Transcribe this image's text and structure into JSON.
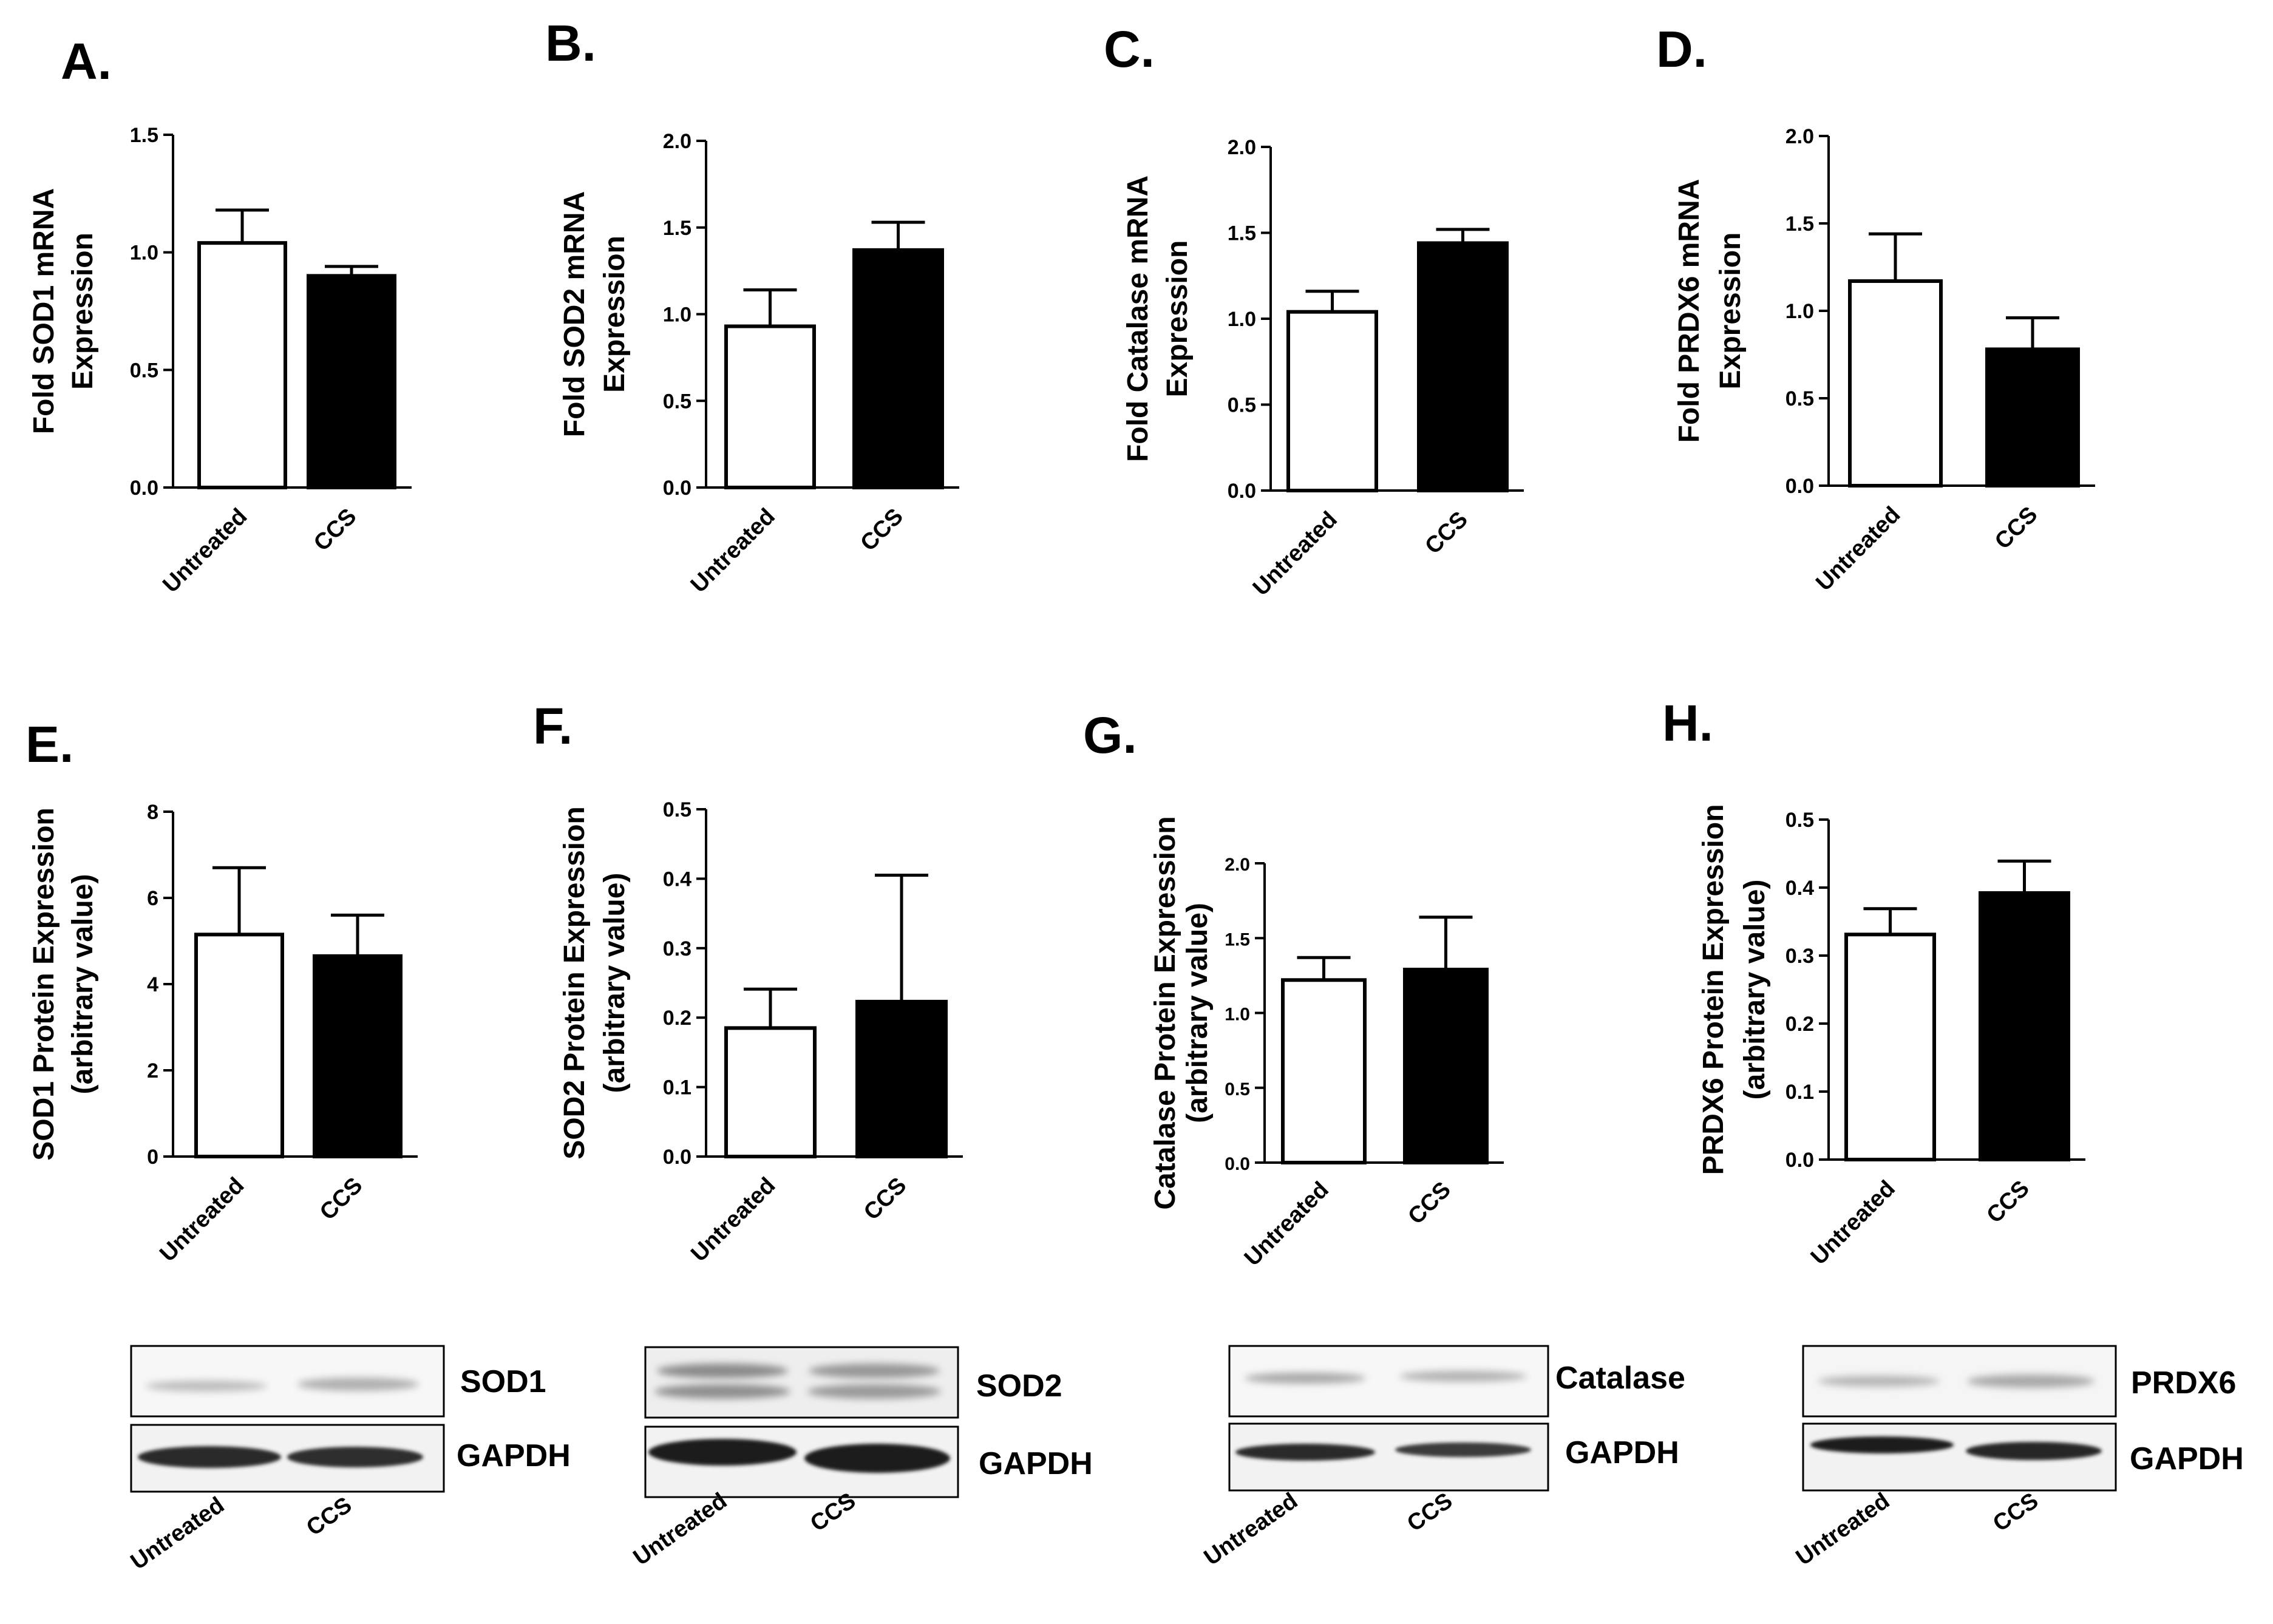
{
  "chart_data": [
    {
      "id": "A",
      "type": "bar",
      "panel_label": "A.",
      "ylabel": [
        "Fold SOD1 mRNA",
        "Expression"
      ],
      "categories": [
        "Untreated",
        "CCS"
      ],
      "values": [
        1.04,
        0.9
      ],
      "errors": [
        0.14,
        0.04
      ],
      "ylim": [
        0,
        1.5
      ],
      "ticks": [
        "0.0",
        "0.5",
        "1.0",
        "1.5"
      ]
    },
    {
      "id": "B",
      "type": "bar",
      "panel_label": "B.",
      "ylabel": [
        "Fold SOD2 mRNA",
        "Expression"
      ],
      "categories": [
        "Untreated",
        "CCS"
      ],
      "values": [
        0.93,
        1.37
      ],
      "errors": [
        0.21,
        0.16
      ],
      "ylim": [
        0,
        2.0
      ],
      "ticks": [
        "0.0",
        "0.5",
        "1.0",
        "1.5",
        "2.0"
      ]
    },
    {
      "id": "C",
      "type": "bar",
      "panel_label": "C.",
      "ylabel": [
        "Fold Catalase mRNA",
        "Expression"
      ],
      "categories": [
        "Untreated",
        "CCS"
      ],
      "values": [
        1.04,
        1.44
      ],
      "errors": [
        0.12,
        0.08
      ],
      "ylim": [
        0,
        2.0
      ],
      "ticks": [
        "0.0",
        "0.5",
        "1.0",
        "1.5",
        "2.0"
      ]
    },
    {
      "id": "D",
      "type": "bar",
      "panel_label": "D.",
      "ylabel": [
        "Fold PRDX6 mRNA",
        "Expression"
      ],
      "categories": [
        "Untreated",
        "CCS"
      ],
      "values": [
        1.17,
        0.78
      ],
      "errors": [
        0.27,
        0.18
      ],
      "ylim": [
        0,
        2.0
      ],
      "ticks": [
        "0.0",
        "0.5",
        "1.0",
        "1.5",
        "2.0"
      ]
    },
    {
      "id": "E",
      "type": "bar",
      "panel_label": "E.",
      "ylabel": [
        "SOD1 Protein Expression",
        "(arbitrary value)"
      ],
      "categories": [
        "Untreated",
        "CCS"
      ],
      "values": [
        5.15,
        4.65
      ],
      "errors": [
        1.55,
        0.95
      ],
      "ylim": [
        0,
        8
      ],
      "ticks": [
        "0",
        "2",
        "4",
        "6",
        "8"
      ]
    },
    {
      "id": "F",
      "type": "bar",
      "panel_label": "F.",
      "ylabel": [
        "SOD2 Protein Expression",
        "(arbitrary value)"
      ],
      "categories": [
        "Untreated",
        "CCS"
      ],
      "values": [
        0.185,
        0.223
      ],
      "errors": [
        0.056,
        0.182
      ],
      "ylim": [
        0,
        0.5
      ],
      "ticks": [
        "0.0",
        "0.1",
        "0.2",
        "0.3",
        "0.4",
        "0.5"
      ]
    },
    {
      "id": "G",
      "type": "bar",
      "panel_label": "G.",
      "ylabel": [
        "Catalase Protein Expression",
        "(arbitrary value)"
      ],
      "categories": [
        "Untreated",
        "CCS"
      ],
      "values": [
        1.22,
        1.29
      ],
      "errors": [
        0.15,
        0.35
      ],
      "ylim": [
        0,
        2.0
      ],
      "ticks": [
        "0.0",
        "0.5",
        "1.0",
        "1.5",
        "2.0"
      ]
    },
    {
      "id": "H",
      "type": "bar",
      "panel_label": "H.",
      "ylabel": [
        "PRDX6 Protein Expression",
        "(arbitrary value)"
      ],
      "categories": [
        "Untreated",
        "CCS"
      ],
      "values": [
        0.331,
        0.392
      ],
      "errors": [
        0.038,
        0.047
      ],
      "ylim": [
        0,
        0.5
      ],
      "ticks": [
        "0.0",
        "0.1",
        "0.2",
        "0.3",
        "0.4",
        "0.5"
      ]
    }
  ],
  "blots": [
    {
      "id": "sod1",
      "target": "SOD1",
      "loading": "GAPDH",
      "lanes": [
        "Untreated",
        "CCS"
      ]
    },
    {
      "id": "sod2",
      "target": "SOD2",
      "loading": "GAPDH",
      "lanes": [
        "Untreated",
        "CCS"
      ]
    },
    {
      "id": "catalase",
      "target": "Catalase",
      "loading": "GAPDH",
      "lanes": [
        "Untreated",
        "CCS"
      ]
    },
    {
      "id": "prdx6",
      "target": "PRDX6",
      "loading": "GAPDH",
      "lanes": [
        "Untreated",
        "CCS"
      ]
    }
  ],
  "colors": {
    "untreated_fill": "#ffffff",
    "ccs_fill": "#000000",
    "axis": "#000000"
  }
}
